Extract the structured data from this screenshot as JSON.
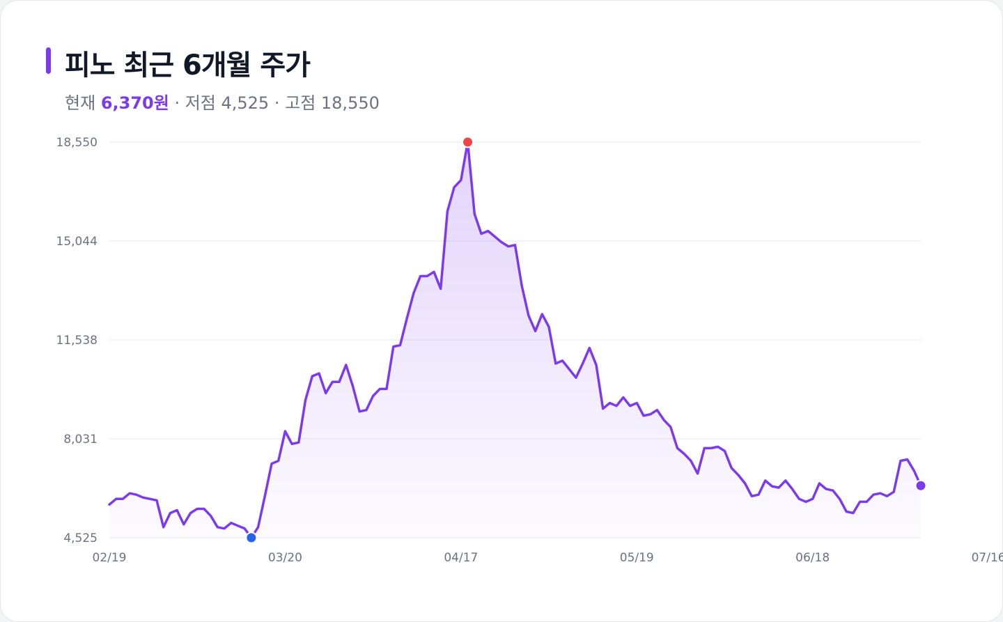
{
  "header": {
    "title": "피노 최근 6개월 주가",
    "current_label": "현재",
    "current_value": "6,370원",
    "low_text": "· 저점 4,525 ·",
    "high_text": "고점 18,550"
  },
  "colors": {
    "accent": "#7c3aed",
    "high_marker": "#ef4444",
    "low_marker": "#2563eb",
    "grid": "#e5e7eb"
  },
  "chart_data": {
    "type": "area",
    "title": "피노 최근 6개월 주가",
    "xlabel": "",
    "ylabel": "",
    "ylim": [
      4525,
      18550
    ],
    "y_ticks": [
      4525,
      8031,
      11538,
      15044,
      18550
    ],
    "y_tick_labels": [
      "4,525",
      "8,031",
      "11,538",
      "15,044",
      "18,550"
    ],
    "x_tick_labels": [
      "02/19",
      "03/20",
      "04/17",
      "05/19",
      "06/18",
      "07/16"
    ],
    "x_tick_index": [
      0,
      26,
      52,
      78,
      104,
      130
    ],
    "values": [
      5700,
      5900,
      5900,
      6100,
      6050,
      5950,
      5900,
      5850,
      4900,
      5400,
      5500,
      5000,
      5400,
      5550,
      5550,
      5300,
      4900,
      4850,
      5050,
      4950,
      4850,
      4525,
      4900,
      6000,
      7150,
      7250,
      8300,
      7850,
      7900,
      9400,
      10250,
      10350,
      9650,
      10050,
      10050,
      10650,
      9900,
      9000,
      9050,
      9550,
      9800,
      9800,
      11300,
      11350,
      12300,
      13200,
      13800,
      13800,
      13950,
      13350,
      16100,
      16950,
      17200,
      18550,
      16000,
      15300,
      15400,
      15200,
      15000,
      14850,
      14900,
      13450,
      12400,
      11850,
      12450,
      12000,
      10700,
      10800,
      10500,
      10200,
      10700,
      11250,
      10650,
      9100,
      9300,
      9200,
      9500,
      9200,
      9300,
      8850,
      8900,
      9050,
      8700,
      8450,
      7700,
      7500,
      7250,
      6800,
      7700,
      7700,
      7750,
      7600,
      7000,
      6750,
      6450,
      6000,
      6050,
      6550,
      6350,
      6300,
      6550,
      6250,
      5900,
      5800,
      5900,
      6450,
      6250,
      6200,
      5900,
      5450,
      5400,
      5800,
      5800,
      6050,
      6100,
      6000,
      6150,
      7250,
      7300,
      6900,
      6370
    ],
    "markers": {
      "high": {
        "index": 53,
        "value": 18550
      },
      "low": {
        "index": 21,
        "value": 4525
      },
      "current": {
        "index": 120,
        "value": 6370
      }
    }
  }
}
